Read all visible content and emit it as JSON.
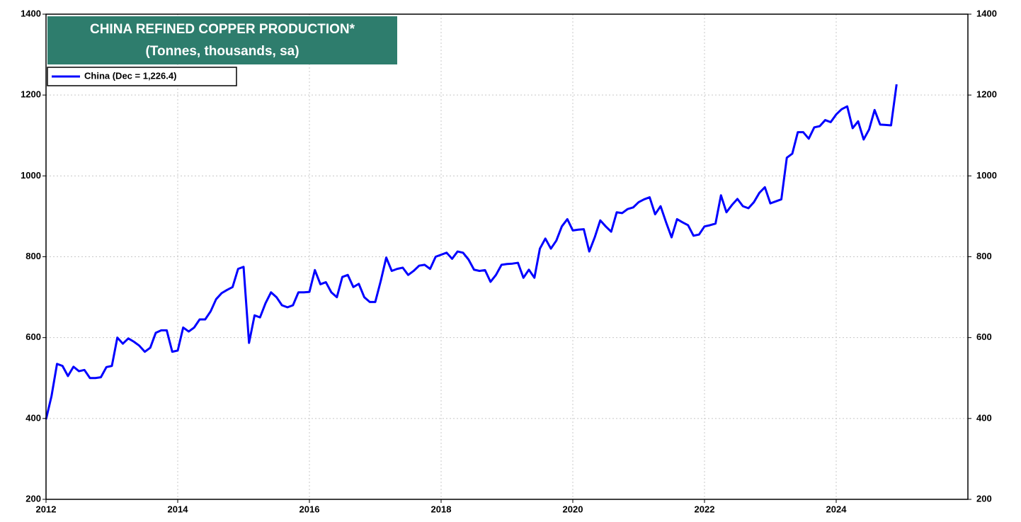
{
  "chart_data": {
    "type": "line",
    "title": "CHINA REFINED COPPER PRODUCTION*",
    "subtitle": "(Tonnes, thousands, sa)",
    "xlim": [
      2012,
      2026
    ],
    "xticks": [
      2012,
      2014,
      2016,
      2018,
      2020,
      2022,
      2024
    ],
    "ylim": [
      200,
      1400
    ],
    "yticks": [
      200,
      400,
      600,
      800,
      1000,
      1200,
      1400
    ],
    "y2lim": [
      200,
      1400
    ],
    "y2ticks": [
      200,
      400,
      600,
      800,
      1000,
      1200,
      1400
    ],
    "grid": true,
    "legend": "upper left",
    "x": [
      2012,
      2012.083,
      2012.167,
      2012.25,
      2012.333,
      2012.417,
      2012.5,
      2012.583,
      2012.667,
      2012.75,
      2012.833,
      2012.917,
      2013,
      2013.083,
      2013.167,
      2013.25,
      2013.333,
      2013.417,
      2013.5,
      2013.583,
      2013.667,
      2013.75,
      2013.833,
      2013.917,
      2014,
      2014.083,
      2014.167,
      2014.25,
      2014.333,
      2014.417,
      2014.5,
      2014.583,
      2014.667,
      2014.75,
      2014.833,
      2014.917,
      2015,
      2015.083,
      2015.167,
      2015.25,
      2015.333,
      2015.417,
      2015.5,
      2015.583,
      2015.667,
      2015.75,
      2015.833,
      2015.917,
      2016,
      2016.083,
      2016.167,
      2016.25,
      2016.333,
      2016.417,
      2016.5,
      2016.583,
      2016.667,
      2016.75,
      2016.833,
      2016.917,
      2017,
      2017.083,
      2017.167,
      2017.25,
      2017.333,
      2017.417,
      2017.5,
      2017.583,
      2017.667,
      2017.75,
      2017.833,
      2017.917,
      2018,
      2018.083,
      2018.167,
      2018.25,
      2018.333,
      2018.417,
      2018.5,
      2018.583,
      2018.667,
      2018.75,
      2018.833,
      2018.917,
      2019,
      2019.083,
      2019.167,
      2019.25,
      2019.333,
      2019.417,
      2019.5,
      2019.583,
      2019.667,
      2019.75,
      2019.833,
      2019.917,
      2020,
      2020.083,
      2020.167,
      2020.25,
      2020.333,
      2020.417,
      2020.5,
      2020.583,
      2020.667,
      2020.75,
      2020.833,
      2020.917,
      2021,
      2021.083,
      2021.167,
      2021.25,
      2021.333,
      2021.417,
      2021.5,
      2021.583,
      2021.667,
      2021.75,
      2021.833,
      2021.917,
      2022,
      2022.083,
      2022.167,
      2022.25,
      2022.333,
      2022.417,
      2022.5,
      2022.583,
      2022.667,
      2022.75,
      2022.833,
      2022.917,
      2023,
      2023.083,
      2023.167,
      2023.25,
      2023.333,
      2023.417,
      2023.5,
      2023.583,
      2023.667,
      2023.75,
      2023.833,
      2023.917,
      2024,
      2024.083,
      2024.167,
      2024.25,
      2024.333,
      2024.417,
      2024.5,
      2024.583,
      2024.667,
      2024.75,
      2024.833,
      2024.917
    ],
    "series": [
      {
        "name": "China (Dec = 1,226.4)",
        "color": "#0000ff",
        "values": [
          398,
          455,
          535,
          530,
          505,
          528,
          517,
          520,
          500,
          500,
          502,
          527,
          530,
          600,
          585,
          598,
          590,
          580,
          565,
          575,
          612,
          618,
          618,
          565,
          568,
          625,
          615,
          625,
          645,
          645,
          665,
          695,
          710,
          718,
          725,
          770,
          775,
          587,
          655,
          650,
          685,
          712,
          700,
          680,
          675,
          680,
          712,
          712,
          713,
          767,
          732,
          737,
          712,
          700,
          750,
          755,
          725,
          733,
          700,
          688,
          688,
          740,
          798,
          765,
          770,
          773,
          755,
          765,
          778,
          780,
          770,
          800,
          805,
          810,
          795,
          813,
          810,
          793,
          768,
          765,
          767,
          738,
          755,
          780,
          782,
          783,
          785,
          748,
          768,
          748,
          820,
          845,
          820,
          840,
          875,
          893,
          865,
          867,
          868,
          813,
          848,
          890,
          875,
          862,
          910,
          908,
          918,
          922,
          935,
          942,
          947,
          905,
          925,
          885,
          848,
          893,
          885,
          878,
          852,
          855,
          875,
          878,
          882,
          952,
          910,
          928,
          943,
          925,
          920,
          935,
          958,
          972,
          932,
          937,
          942,
          1045,
          1055,
          1108,
          1108,
          1092,
          1120,
          1123,
          1138,
          1133,
          1152,
          1165,
          1172,
          1118,
          1135,
          1090,
          1115,
          1163,
          1127,
          1126,
          1125,
          1226.4
        ]
      }
    ]
  }
}
